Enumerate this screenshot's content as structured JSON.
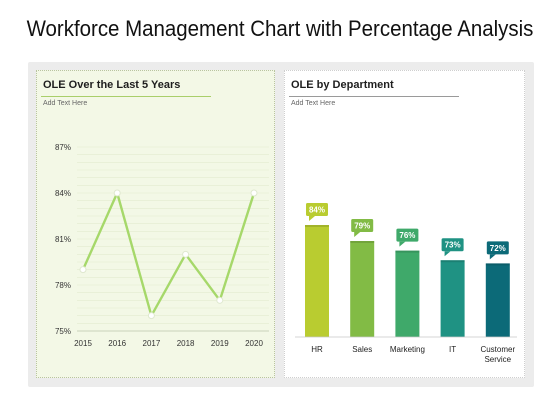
{
  "title": "Workforce Management Chart with Percentage Analysis",
  "left_panel": {
    "title": "OLE Over the Last 5 Years",
    "subtitle": "Add Text Here"
  },
  "right_panel": {
    "title": "OLE by Department",
    "subtitle": "Add Text Here"
  },
  "colors": {
    "line": "#a6d86a",
    "left_bg": "#f3f8e6",
    "bars": [
      "#b9cc30",
      "#82bb45",
      "#3fa96a",
      "#1f9283",
      "#0c6a78"
    ]
  },
  "chart_data": [
    {
      "type": "line",
      "x": [
        "2015",
        "2016",
        "2017",
        "2018",
        "2019",
        "2020"
      ],
      "series": [
        {
          "values": [
            79,
            84,
            76,
            80,
            77,
            84
          ]
        }
      ],
      "yticks": [
        "75%",
        "78%",
        "81%",
        "84%",
        "87%"
      ],
      "ylim": [
        75,
        87
      ],
      "grid": true
    },
    {
      "type": "bar",
      "categories": [
        "HR",
        "Sales",
        "Marketing",
        "IT",
        "Customer Service"
      ],
      "values": [
        84,
        79,
        76,
        73,
        72
      ],
      "labels": [
        "84%",
        "79%",
        "76%",
        "73%",
        "72%"
      ]
    }
  ]
}
